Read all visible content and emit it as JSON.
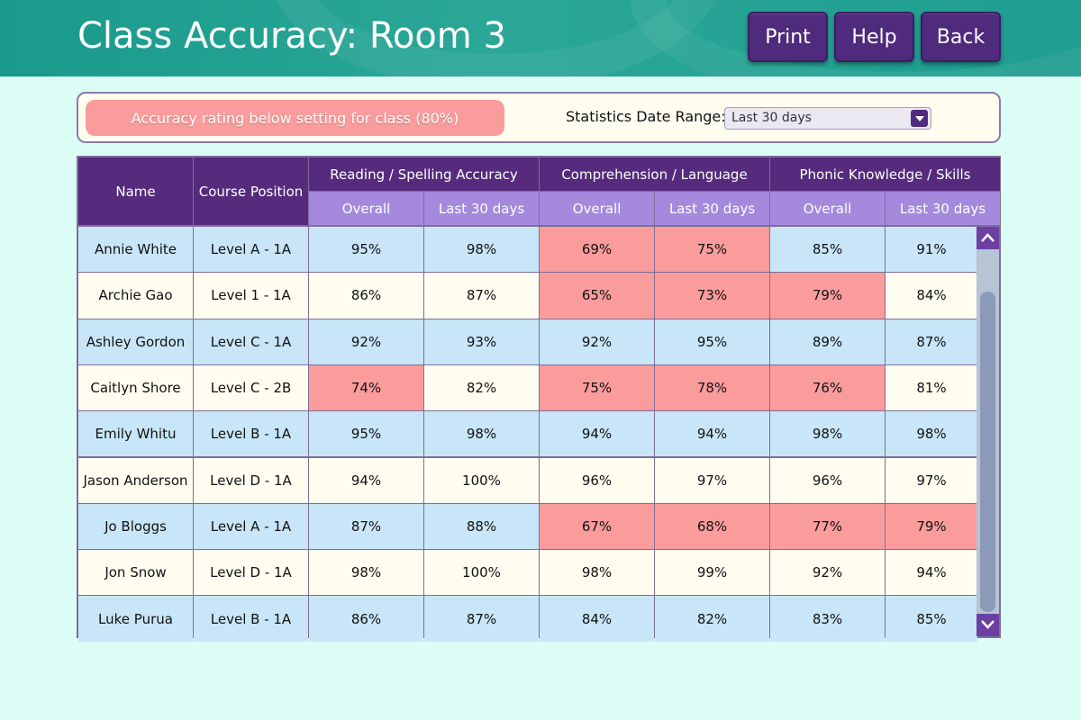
{
  "header": {
    "title": "Class Accuracy: Room 3",
    "buttons": {
      "print": "Print",
      "help": "Help",
      "back": "Back"
    }
  },
  "controls": {
    "legend": "Accuracy rating below setting for class (80%)",
    "range_label": "Statistics Date Range:",
    "range_value": "Last 30 days"
  },
  "colors": {
    "header_bg": "#1f9d90",
    "button_bg": "#4f2a7d",
    "header_row": "#562b7d",
    "subheader_row": "#a489dd",
    "row_blue": "#c8e6f8",
    "row_cream": "#fffdf0",
    "below_setting": "#fa9c9c"
  },
  "table": {
    "columns": {
      "name": "Name",
      "position": "Course Position",
      "groups": [
        "Reading / Spelling Accuracy",
        "Comprehension / Language",
        "Phonic Knowledge / Skills"
      ],
      "sub": [
        "Overall",
        "Last 30 days"
      ]
    },
    "rows": [
      {
        "name": "Annie White",
        "position": "Level A - 1A",
        "values": [
          "95%",
          "98%",
          "69%",
          "75%",
          "85%",
          "91%"
        ],
        "low": [
          false,
          false,
          true,
          true,
          false,
          false
        ]
      },
      {
        "name": "Archie Gao",
        "position": "Level 1 - 1A",
        "values": [
          "86%",
          "87%",
          "65%",
          "73%",
          "79%",
          "84%"
        ],
        "low": [
          false,
          false,
          true,
          true,
          true,
          false
        ]
      },
      {
        "name": "Ashley Gordon",
        "position": "Level C - 1A",
        "values": [
          "92%",
          "93%",
          "92%",
          "95%",
          "89%",
          "87%"
        ],
        "low": [
          false,
          false,
          false,
          false,
          false,
          false
        ]
      },
      {
        "name": "Caitlyn Shore",
        "position": "Level C - 2B",
        "values": [
          "74%",
          "82%",
          "75%",
          "78%",
          "76%",
          "81%"
        ],
        "low": [
          true,
          false,
          true,
          true,
          true,
          false
        ]
      },
      {
        "name": "Emily Whitu",
        "position": "Level B - 1A",
        "values": [
          "95%",
          "98%",
          "94%",
          "94%",
          "98%",
          "98%"
        ],
        "low": [
          false,
          false,
          false,
          false,
          false,
          false
        ]
      },
      {
        "name": "Jason Anderson",
        "position": "Level D - 1A",
        "values": [
          "94%",
          "100%",
          "96%",
          "97%",
          "96%",
          "97%"
        ],
        "low": [
          false,
          false,
          false,
          false,
          false,
          false
        ]
      },
      {
        "name": "Jo Bloggs",
        "position": "Level A - 1A",
        "values": [
          "87%",
          "88%",
          "67%",
          "68%",
          "77%",
          "79%"
        ],
        "low": [
          false,
          false,
          true,
          true,
          true,
          true
        ]
      },
      {
        "name": "Jon Snow",
        "position": "Level D - 1A",
        "values": [
          "98%",
          "100%",
          "98%",
          "99%",
          "92%",
          "94%"
        ],
        "low": [
          false,
          false,
          false,
          false,
          false,
          false
        ]
      },
      {
        "name": "Luke Purua",
        "position": "Level B - 1A",
        "values": [
          "86%",
          "87%",
          "84%",
          "82%",
          "83%",
          "85%"
        ],
        "low": [
          false,
          false,
          false,
          false,
          false,
          false
        ]
      }
    ]
  },
  "scrollbar": {
    "up": "chevron-up-icon",
    "down": "chevron-down-icon"
  }
}
